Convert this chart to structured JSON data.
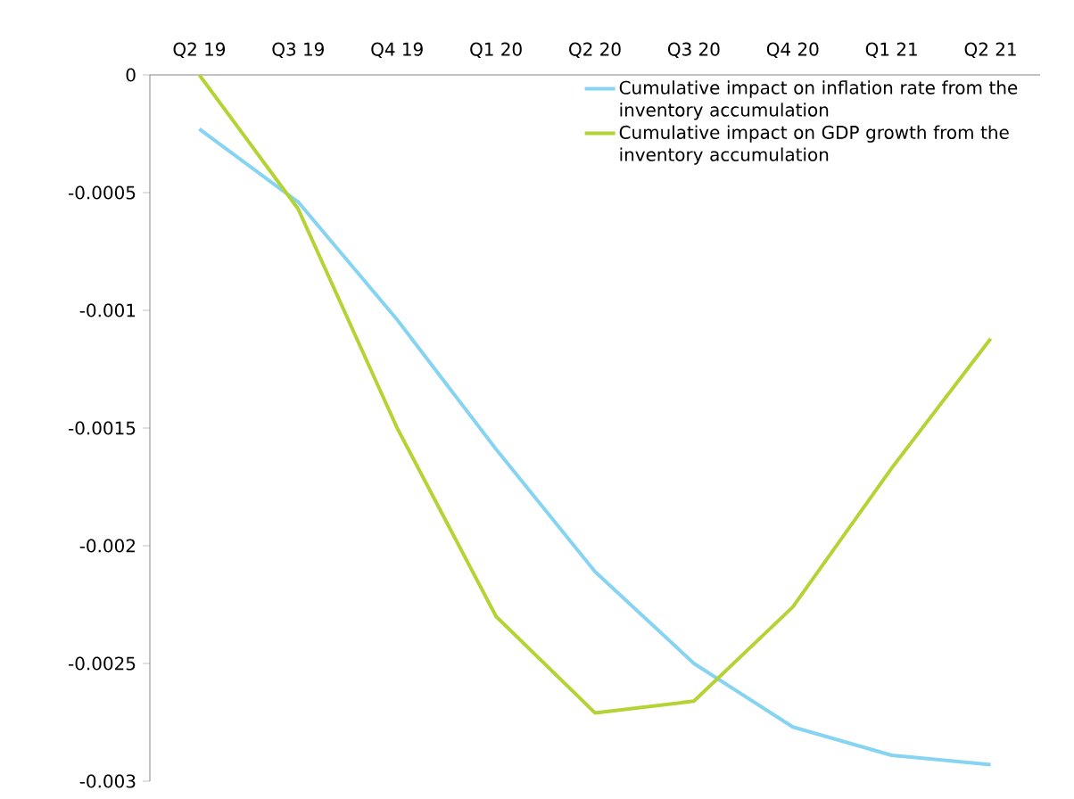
{
  "chart_data": {
    "type": "line",
    "categories": [
      "Q2 19",
      "Q3 19",
      "Q4 19",
      "Q1 20",
      "Q2 20",
      "Q3 20",
      "Q4 20",
      "Q1 21",
      "Q2 21"
    ],
    "series": [
      {
        "name": "Cumulative impact on inflation rate from the inventory accumulation",
        "color": "#87d4f2",
        "values": [
          -0.00023,
          -0.00054,
          -0.00104,
          -0.00159,
          -0.00211,
          -0.0025,
          -0.00277,
          -0.00289,
          -0.00293
        ]
      },
      {
        "name": "Cumulative impact on GDP growth from the inventory accumulation",
        "color": "#b4d334",
        "values": [
          0,
          -0.00057,
          -0.0015,
          -0.0023,
          -0.00271,
          -0.00266,
          -0.00226,
          -0.00167,
          -0.00112
        ]
      }
    ],
    "ylim": [
      -0.003,
      0
    ],
    "yticks": [
      -0.003,
      -0.0025,
      -0.002,
      -0.0015,
      -0.001,
      -0.0005,
      0
    ],
    "grid": false,
    "legend": "top right",
    "marker": "none",
    "line_style": "solid"
  }
}
